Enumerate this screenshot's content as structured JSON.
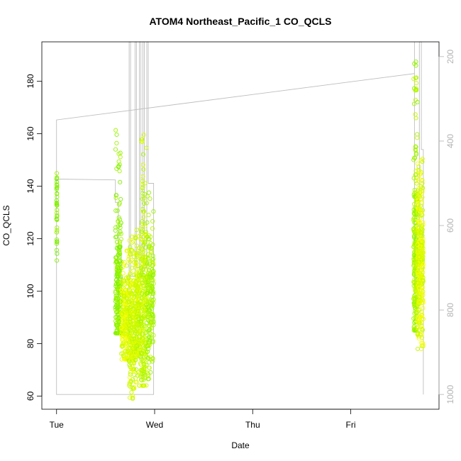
{
  "chart_data": {
    "type": "scatter",
    "title": "ATOM4 Northeast_Pacific_1 CO_QCLS",
    "xlabel": "Date",
    "ylabel": "CO_QCLS",
    "x_day_ticks": [
      "Tue",
      "Wed",
      "Thu",
      "Fri"
    ],
    "xlim_days": [
      -0.15,
      3.9
    ],
    "ylim": [
      55,
      195
    ],
    "yticks": [
      60,
      80,
      100,
      120,
      140,
      160,
      180
    ],
    "right_axis": {
      "quantity": "pressure",
      "ticks": [
        200,
        400,
        600,
        800,
        1000
      ],
      "lim": [
        1035,
        165
      ],
      "color": "#b3b3b3"
    },
    "pressure_trace_color": "#bebebe",
    "color_scale": {
      "low": "#ffff00",
      "high": "#66ee00"
    },
    "grid": false,
    "legend": "none",
    "pressure_trace": [
      [
        0.0,
        1000
      ],
      [
        0.0,
        430
      ],
      [
        0.0,
        490
      ],
      [
        0.6,
        492
      ],
      [
        0.6,
        545
      ],
      [
        0.63,
        545
      ],
      [
        0.63,
        650
      ],
      [
        0.66,
        650
      ],
      [
        0.66,
        760
      ],
      [
        0.74,
        760
      ],
      [
        0.74,
        100
      ],
      [
        0.755,
        100
      ],
      [
        0.755,
        720
      ],
      [
        0.8,
        720
      ],
      [
        0.8,
        100
      ],
      [
        0.815,
        100
      ],
      [
        0.815,
        700
      ],
      [
        0.845,
        700
      ],
      [
        0.845,
        100
      ],
      [
        0.86,
        100
      ],
      [
        0.86,
        740
      ],
      [
        0.88,
        740
      ],
      [
        0.88,
        100
      ],
      [
        0.895,
        100
      ],
      [
        0.895,
        700
      ],
      [
        0.92,
        700
      ],
      [
        0.92,
        100
      ],
      [
        0.935,
        100
      ],
      [
        0.935,
        500
      ],
      [
        0.99,
        500
      ],
      [
        0.99,
        1000
      ],
      [
        0.0,
        1000
      ],
      [
        0.0,
        350
      ],
      [
        3.65,
        240
      ],
      [
        3.65,
        150
      ],
      [
        3.65,
        760
      ],
      [
        3.7,
        760
      ],
      [
        3.7,
        100
      ],
      [
        3.72,
        100
      ],
      [
        3.72,
        420
      ],
      [
        3.74,
        420
      ],
      [
        3.74,
        1000
      ]
    ],
    "segments": [
      {
        "x_start": 0.0,
        "x_end": 0.005,
        "n": 40,
        "y_min": 109,
        "y_max": 148,
        "mean": 129,
        "pressure": 480
      },
      {
        "x_start": 0.6,
        "x_end": 0.66,
        "n": 230,
        "y_min": 84,
        "y_max": 162,
        "mean": 100,
        "pressure": 520
      },
      {
        "x_start": 0.66,
        "x_end": 0.74,
        "n": 240,
        "y_min": 74,
        "y_max": 118,
        "mean": 90,
        "pressure": 760
      },
      {
        "x_start": 0.74,
        "x_end": 0.8,
        "n": 220,
        "y_min": 59,
        "y_max": 122,
        "mean": 85,
        "pressure": 720
      },
      {
        "x_start": 0.8,
        "x_end": 0.86,
        "n": 240,
        "y_min": 64,
        "y_max": 124,
        "mean": 90,
        "pressure": 700
      },
      {
        "x_start": 0.86,
        "x_end": 0.92,
        "n": 240,
        "y_min": 64,
        "y_max": 160,
        "mean": 92,
        "pressure": 680
      },
      {
        "x_start": 0.92,
        "x_end": 0.99,
        "n": 200,
        "y_min": 66,
        "y_max": 140,
        "mean": 97,
        "pressure": 600
      },
      {
        "x_start": 3.64,
        "x_end": 3.68,
        "n": 260,
        "y_min": 85,
        "y_max": 190,
        "mean": 115,
        "pressure": 600
      },
      {
        "x_start": 3.68,
        "x_end": 3.74,
        "n": 320,
        "y_min": 78,
        "y_max": 152,
        "mean": 110,
        "pressure": 760
      }
    ]
  }
}
